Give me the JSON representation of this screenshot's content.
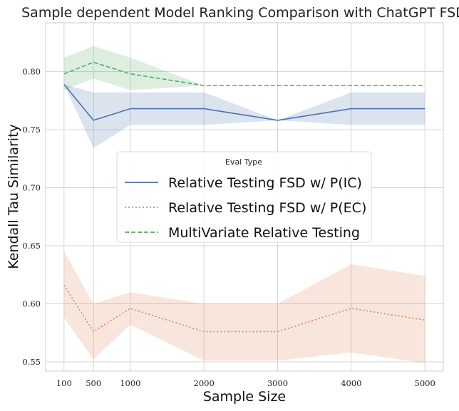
{
  "chart_data": {
    "type": "line",
    "title": "Sample dependent Model Ranking Comparison with ChatGPT FSD",
    "xlabel": "Sample Size",
    "ylabel": "Kendall Tau Similarity",
    "x": [
      100,
      500,
      1000,
      2000,
      3000,
      4000,
      5000
    ],
    "x_ticks": [
      "100",
      "500",
      "1000",
      "2000",
      "3000",
      "4000",
      "5000"
    ],
    "xlim": [
      -150,
      5250
    ],
    "ylim": [
      0.542,
      0.842
    ],
    "y_ticks": [
      "0.55",
      "0.60",
      "0.65",
      "0.70",
      "0.75",
      "0.80"
    ],
    "y_tick_values": [
      0.55,
      0.6,
      0.65,
      0.7,
      0.75,
      0.8
    ],
    "grid": true,
    "legend": {
      "title": "Eval Type",
      "placement": "center"
    },
    "series": [
      {
        "name": "Relative Testing FSD w/ P(IC)",
        "color": "#4c72b0",
        "line_style": "solid",
        "values": [
          0.789,
          0.758,
          0.768,
          0.768,
          0.758,
          0.768,
          0.768
        ],
        "ci_low": [
          0.789,
          0.734,
          0.754,
          0.754,
          0.758,
          0.754,
          0.754
        ],
        "ci_high": [
          0.789,
          0.782,
          0.782,
          0.782,
          0.758,
          0.782,
          0.782
        ]
      },
      {
        "name": "Relative Testing FSD w/ P(EC)",
        "color": "#dd8452",
        "line_style": "dotted",
        "values": [
          0.616,
          0.576,
          0.596,
          0.576,
          0.576,
          0.596,
          0.586
        ],
        "ci_low": [
          0.588,
          0.552,
          0.582,
          0.551,
          0.551,
          0.558,
          0.549
        ],
        "ci_high": [
          0.645,
          0.6,
          0.61,
          0.6,
          0.6,
          0.634,
          0.624
        ]
      },
      {
        "name": "MultiVariate Relative Testing",
        "color": "#55a868",
        "line_style": "dashed",
        "values": [
          0.798,
          0.808,
          0.798,
          0.788,
          0.788,
          0.788,
          0.788
        ],
        "ci_low": [
          0.784,
          0.794,
          0.784,
          0.788,
          0.788,
          0.788,
          0.788
        ],
        "ci_high": [
          0.812,
          0.822,
          0.812,
          0.788,
          0.788,
          0.788,
          0.788
        ]
      }
    ]
  }
}
